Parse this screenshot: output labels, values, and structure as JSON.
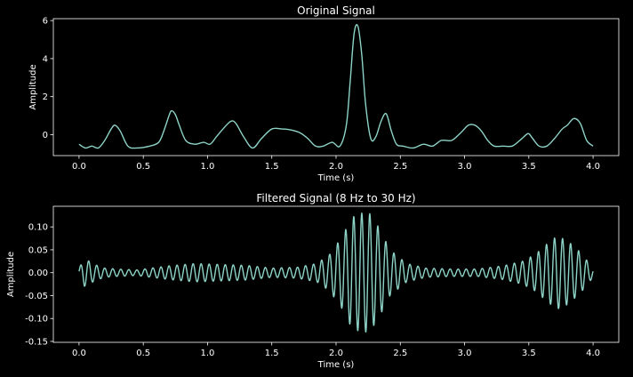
{
  "chart_data": [
    {
      "type": "line",
      "title": "Original Signal",
      "xlabel": "Time (s)",
      "ylabel": "Amplitude",
      "xlim": [
        -0.2,
        4.2
      ],
      "ylim": [
        -1.1,
        6.1
      ],
      "xticks": [
        0.0,
        0.5,
        1.0,
        1.5,
        2.0,
        2.5,
        3.0,
        3.5,
        4.0
      ],
      "xtick_labels": [
        "0.0",
        "0.5",
        "1.0",
        "1.5",
        "2.0",
        "2.5",
        "3.0",
        "3.5",
        "4.0"
      ],
      "yticks": [
        0,
        2,
        4,
        6
      ],
      "ytick_labels": [
        "0",
        "2",
        "4",
        "6"
      ],
      "grid": false,
      "line_color": "#8dd3c7",
      "series": [
        {
          "x": [
            0.0,
            0.05,
            0.1,
            0.15,
            0.2,
            0.25,
            0.28,
            0.32,
            0.38,
            0.45,
            0.55,
            0.62,
            0.66,
            0.7,
            0.72,
            0.75,
            0.78,
            0.83,
            0.9,
            0.97,
            1.02,
            1.07,
            1.12,
            1.18,
            1.22,
            1.28,
            1.35,
            1.42,
            1.5,
            1.58,
            1.65,
            1.72,
            1.78,
            1.84,
            1.9,
            1.97,
            2.03,
            2.08,
            2.11,
            2.14,
            2.17,
            2.2,
            2.23,
            2.27,
            2.31,
            2.35,
            2.39,
            2.43,
            2.47,
            2.52,
            2.6,
            2.68,
            2.75,
            2.82,
            2.9,
            2.97,
            3.03,
            3.08,
            3.13,
            3.18,
            3.23,
            3.3,
            3.37,
            3.43,
            3.48,
            3.5,
            3.53,
            3.58,
            3.64,
            3.7,
            3.76,
            3.8,
            3.85,
            3.9,
            3.95,
            4.0
          ],
          "y": [
            -0.5,
            -0.7,
            -0.6,
            -0.7,
            -0.3,
            0.3,
            0.5,
            0.2,
            -0.6,
            -0.7,
            -0.6,
            -0.4,
            0.2,
            1.0,
            1.25,
            1.05,
            0.5,
            -0.3,
            -0.5,
            -0.4,
            -0.5,
            -0.1,
            0.3,
            0.7,
            0.6,
            -0.1,
            -0.7,
            -0.2,
            0.3,
            0.3,
            0.25,
            0.1,
            -0.2,
            -0.6,
            -0.6,
            -0.4,
            -0.6,
            0.5,
            2.8,
            5.3,
            5.7,
            4.2,
            1.6,
            -0.2,
            -0.1,
            0.7,
            1.1,
            0.2,
            -0.5,
            -0.6,
            -0.7,
            -0.5,
            -0.6,
            -0.3,
            -0.3,
            0.1,
            0.5,
            0.5,
            0.2,
            -0.3,
            -0.6,
            -0.6,
            -0.6,
            -0.3,
            0.0,
            0.05,
            -0.2,
            -0.6,
            -0.6,
            -0.2,
            0.3,
            0.5,
            0.85,
            0.6,
            -0.3,
            -0.6
          ]
        }
      ]
    },
    {
      "type": "line",
      "title": "Filtered Signal (8 Hz to 30 Hz)",
      "xlabel": "Time (s)",
      "ylabel": "Amplitude",
      "xlim": [
        -0.2,
        4.2
      ],
      "ylim": [
        -0.152,
        0.145
      ],
      "xticks": [
        0.0,
        0.5,
        1.0,
        1.5,
        2.0,
        2.5,
        3.0,
        3.5,
        4.0
      ],
      "xtick_labels": [
        "0.0",
        "0.5",
        "1.0",
        "1.5",
        "2.0",
        "2.5",
        "3.0",
        "3.5",
        "4.0"
      ],
      "yticks": [
        -0.15,
        -0.1,
        -0.05,
        0.0,
        0.05,
        0.1
      ],
      "ytick_labels": [
        "-0.15",
        "-0.10",
        "-0.05",
        "0.00",
        "0.05",
        "0.10"
      ],
      "grid": false,
      "line_color": "#8dd3c7",
      "series": [
        {
          "frequency_hz": 16,
          "t": [
            0.0,
            0.04,
            0.08,
            0.12,
            0.2,
            0.3,
            0.45,
            0.7,
            0.9,
            1.1,
            1.3,
            1.5,
            1.7,
            1.85,
            1.95,
            2.05,
            2.12,
            2.19,
            2.26,
            2.33,
            2.42,
            2.55,
            2.7,
            2.9,
            3.1,
            3.3,
            3.45,
            3.55,
            3.65,
            3.72,
            3.8,
            3.9,
            4.0
          ],
          "envelope": [
            0.01,
            0.03,
            0.025,
            0.018,
            0.01,
            0.008,
            0.006,
            0.015,
            0.02,
            0.018,
            0.016,
            0.01,
            0.012,
            0.02,
            0.04,
            0.08,
            0.12,
            0.13,
            0.13,
            0.1,
            0.05,
            0.02,
            0.01,
            0.008,
            0.008,
            0.015,
            0.025,
            0.04,
            0.065,
            0.08,
            0.07,
            0.045,
            0.01
          ]
        }
      ]
    }
  ]
}
